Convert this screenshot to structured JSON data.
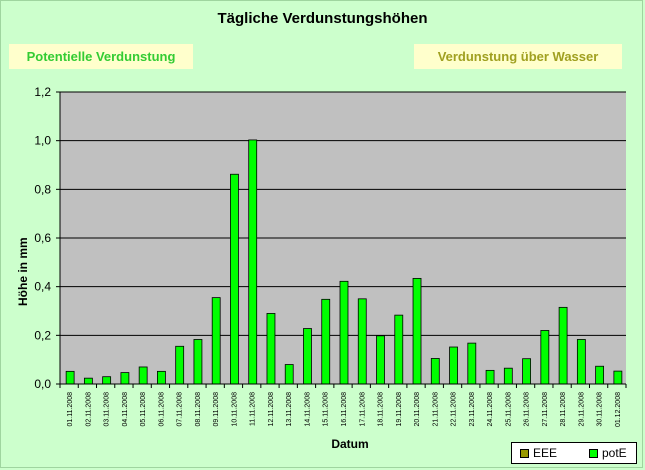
{
  "title": "Tägliche Verdunstungshöhen",
  "tabs": {
    "left": "Potentielle Verdunstung",
    "right": "Verdunstung über Wasser"
  },
  "chart_data": {
    "type": "bar",
    "title": "Tägliche Verdunstungshöhen",
    "xlabel": "Datum",
    "ylabel": "Höhe in mm",
    "ylim": [
      0,
      1.2
    ],
    "yticks": [
      "0,0",
      "0,2",
      "0,4",
      "0,6",
      "0,8",
      "1,0",
      "1,2"
    ],
    "grid": true,
    "legend_position": "bottom-right",
    "plot_background": "#c0c0c0",
    "categories": [
      "01.11.2008",
      "02.11.2008",
      "03.11.2008",
      "04.11.2008",
      "05.11.2008",
      "06.11.2008",
      "07.11.2008",
      "08.11.2008",
      "09.11.2008",
      "10.11.2008",
      "11.11.2008",
      "12.11.2008",
      "13.11.2008",
      "14.11.2008",
      "15.11.2008",
      "16.11.2008",
      "17.11.2008",
      "18.11.2008",
      "19.11.2008",
      "20.11.2008",
      "21.11.2008",
      "22.11.2008",
      "23.11.2008",
      "24.11.2008",
      "25.11.2008",
      "26.11.2008",
      "27.11.2008",
      "28.11.2008",
      "29.11.2008",
      "30.11.2008",
      "01.12.2008"
    ],
    "series": [
      {
        "name": "EEE",
        "color": "#999900",
        "values": [
          0,
          0,
          0,
          0,
          0,
          0,
          0,
          0,
          0,
          0,
          0,
          0,
          0,
          0,
          0,
          0,
          0,
          0,
          0,
          0,
          0,
          0,
          0,
          0,
          0,
          0,
          0,
          0,
          0,
          0,
          0
        ]
      },
      {
        "name": "potE",
        "color": "#00ff00",
        "values": [
          0.052,
          0.024,
          0.03,
          0.047,
          0.07,
          0.052,
          0.155,
          0.183,
          0.355,
          0.862,
          1.003,
          0.29,
          0.08,
          0.228,
          0.348,
          0.422,
          0.35,
          0.198,
          0.283,
          0.434,
          0.105,
          0.152,
          0.168,
          0.056,
          0.065,
          0.104,
          0.22,
          0.315,
          0.183,
          0.073,
          0.053
        ]
      }
    ]
  }
}
